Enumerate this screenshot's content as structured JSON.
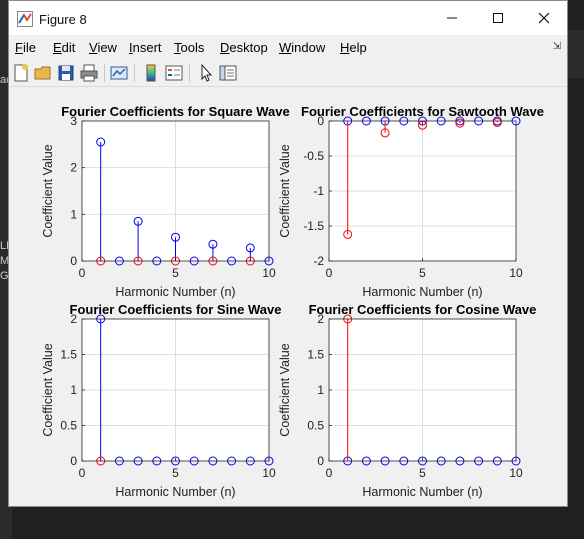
{
  "window": {
    "title": "Figure 8"
  },
  "menu": [
    {
      "pre": "",
      "acc": "F",
      "post": "ile"
    },
    {
      "pre": "",
      "acc": "E",
      "post": "dit"
    },
    {
      "pre": "",
      "acc": "V",
      "post": "iew"
    },
    {
      "pre": "",
      "acc": "I",
      "post": "nsert"
    },
    {
      "pre": "",
      "acc": "T",
      "post": "ools"
    },
    {
      "pre": "",
      "acc": "D",
      "post": "esktop"
    },
    {
      "pre": "",
      "acc": "W",
      "post": "indow"
    },
    {
      "pre": "",
      "acc": "H",
      "post": "elp"
    }
  ],
  "toolbar": {
    "icons": [
      "new-figure-icon",
      "open-file-icon",
      "save-icon",
      "print-icon",
      "link-plot-icon",
      "insert-colorbar-icon",
      "insert-legend-icon",
      "pointer-icon",
      "property-inspector-icon"
    ]
  },
  "background_text": [
    "ac",
    "LL",
    "M(",
    "G("
  ],
  "colors": {
    "stem_blue": "#0000ff",
    "stem_red": "#ff0000",
    "axes_bg": "#ffffff",
    "figure_bg": "#f0f0f0"
  },
  "chart_data": [
    {
      "type": "stem",
      "title": "Fourier Coefficients for Square Wave",
      "xlabel": "Harmonic Number (n)",
      "ylabel": "Coefficient Value",
      "xlim": [
        0,
        10
      ],
      "ylim": [
        0,
        3
      ],
      "xticks": [
        0,
        5,
        10
      ],
      "yticks": [
        0,
        1,
        2,
        3
      ],
      "grid": true,
      "series": [
        {
          "color": "blue",
          "x": [
            1,
            2,
            3,
            4,
            5,
            6,
            7,
            8,
            9,
            10
          ],
          "y": [
            2.55,
            0,
            0.85,
            0,
            0.51,
            0,
            0.36,
            0,
            0.28,
            0
          ]
        },
        {
          "color": "red",
          "x": [
            1,
            3,
            5,
            7,
            9
          ],
          "y": [
            0,
            0,
            0,
            0,
            0
          ]
        }
      ]
    },
    {
      "type": "stem",
      "title": "Fourier Coefficients for Sawtooth Wave",
      "xlabel": "Harmonic Number (n)",
      "ylabel": "Coefficient Value",
      "xlim": [
        0,
        10
      ],
      "ylim": [
        -2,
        0
      ],
      "xticks": [
        0,
        5,
        10
      ],
      "yticks": [
        -2,
        -1.5,
        -1,
        -0.5,
        0
      ],
      "grid": true,
      "series": [
        {
          "color": "blue",
          "x": [
            1,
            2,
            3,
            4,
            5,
            6,
            7,
            8,
            9,
            10
          ],
          "y": [
            0,
            0,
            0,
            0,
            0,
            0,
            0,
            0,
            0,
            0
          ]
        },
        {
          "color": "red",
          "x": [
            1,
            3,
            5,
            7,
            9
          ],
          "y": [
            -1.62,
            -0.17,
            -0.06,
            -0.03,
            -0.02
          ]
        }
      ]
    },
    {
      "type": "stem",
      "title": "Fourier Coefficients for Sine Wave",
      "xlabel": "Harmonic Number (n)",
      "ylabel": "Coefficient Value",
      "xlim": [
        0,
        10
      ],
      "ylim": [
        0,
        2
      ],
      "xticks": [
        0,
        5,
        10
      ],
      "yticks": [
        0,
        0.5,
        1,
        1.5,
        2
      ],
      "grid": true,
      "series": [
        {
          "color": "blue",
          "x": [
            1,
            2,
            3,
            4,
            5,
            6,
            7,
            8,
            9,
            10
          ],
          "y": [
            2,
            0,
            0,
            0,
            0,
            0,
            0,
            0,
            0,
            0
          ]
        },
        {
          "color": "red",
          "x": [
            1
          ],
          "y": [
            0
          ]
        }
      ]
    },
    {
      "type": "stem",
      "title": "Fourier Coefficients for Cosine Wave",
      "xlabel": "Harmonic Number (n)",
      "ylabel": "Coefficient Value",
      "xlim": [
        0,
        10
      ],
      "ylim": [
        0,
        2
      ],
      "xticks": [
        0,
        5,
        10
      ],
      "yticks": [
        0,
        0.5,
        1,
        1.5,
        2
      ],
      "grid": true,
      "series": [
        {
          "color": "blue",
          "x": [
            1,
            2,
            3,
            4,
            5,
            6,
            7,
            8,
            9,
            10
          ],
          "y": [
            0,
            0,
            0,
            0,
            0,
            0,
            0,
            0,
            0,
            0
          ]
        },
        {
          "color": "red",
          "x": [
            1
          ],
          "y": [
            2
          ]
        }
      ]
    }
  ]
}
